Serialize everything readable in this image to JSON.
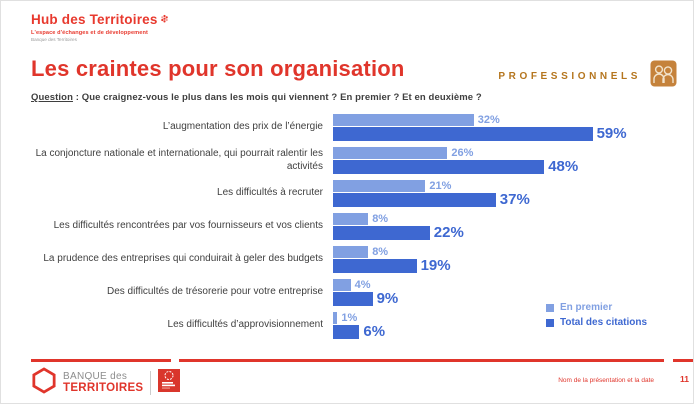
{
  "header": {
    "logo_title": "Hub des Territoires",
    "logo_subtitle": "L'espace d'échanges et de développement",
    "logo_subsubtitle": "Banque des Territoires",
    "audience_label": "PROFESSIONNELS"
  },
  "title": "Les craintes pour son organisation",
  "question": {
    "prefix": "Question",
    "text": " : Que craignez-vous le plus dans les mois qui viennent ? En premier ? Et en deuxième ?"
  },
  "chart_data": {
    "type": "bar",
    "orientation": "horizontal",
    "title": "Les craintes pour son organisation",
    "categories": [
      "L’augmentation des prix de l’énergie",
      "La conjoncture nationale et internationale, qui pourrait ralentir les activités",
      "Les difficultés à recruter",
      "Les difficultés rencontrées par vos fournisseurs et vos clients",
      "La prudence des entreprises qui conduirait à geler des budgets",
      "Des difficultés de trésorerie pour votre entreprise",
      "Les difficultés d’approvisionnement"
    ],
    "series": [
      {
        "name": "En premier",
        "color": "#81A0E2",
        "values": [
          32,
          26,
          21,
          8,
          8,
          4,
          1
        ]
      },
      {
        "name": "Total des citations",
        "color": "#3E68D1",
        "values": [
          59,
          48,
          37,
          22,
          19,
          9,
          6
        ]
      }
    ],
    "value_suffix": "%",
    "xlim": [
      0,
      60
    ],
    "grid": false,
    "legend_position": "bottom-right"
  },
  "footer": {
    "brand_line1": "BANQUE des",
    "brand_line2": "TERRITOIRES",
    "partner_logo": "Caisse des Dépôts",
    "caption": "Nom de la présentation et la date",
    "page_number": "11"
  },
  "colors": {
    "accent_red": "#E0352B",
    "gold": "#B5761F",
    "light_blue": "#81A0E2",
    "dark_blue": "#3E68D1",
    "text_gray": "#404040"
  }
}
